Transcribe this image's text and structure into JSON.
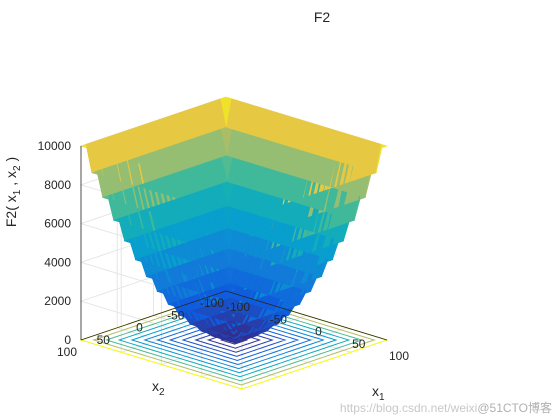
{
  "chart_data": {
    "type": "surface",
    "title": "F2",
    "function": "F2",
    "xlabel_base": "x",
    "xlabel_sub": "1",
    "ylabel_base": "x",
    "ylabel_sub": "2",
    "zlabel_parts": [
      "F2( x",
      "1",
      " , x",
      "2",
      " )"
    ],
    "x_range": [
      -100,
      100
    ],
    "y_range": [
      -100,
      100
    ],
    "zlim": [
      0,
      10000
    ],
    "x_ticks": [
      "-100",
      "-50",
      "0",
      "50",
      "100"
    ],
    "y_ticks": [
      "-100",
      "-50",
      "0",
      "50",
      "100"
    ],
    "z_ticks": [
      "0",
      "2000",
      "4000",
      "6000",
      "8000",
      "10000"
    ],
    "x_tick_values": [
      -100,
      -50,
      0,
      50,
      100
    ],
    "y_tick_values": [
      -100,
      -50,
      0,
      50,
      100
    ],
    "z_tick_values": [
      0,
      2000,
      4000,
      6000,
      8000,
      10000
    ],
    "grid": true,
    "colormap": "parula",
    "contour_on_floor": true,
    "surface_z_at_corners": {
      "x=-100,y=100": 10000,
      "x=100,y=100": 10000,
      "x=100,y=-100": 10000,
      "x=-100,y=-100": 10000
    },
    "surface_z_at_center": 0
  },
  "colors": {
    "axis": "#262626",
    "grid": "#e6e6e6",
    "background": "#ffffff"
  },
  "watermark": {
    "url": "https://blog.csdn.net/weixi",
    "brand": "@51CTO博客"
  }
}
